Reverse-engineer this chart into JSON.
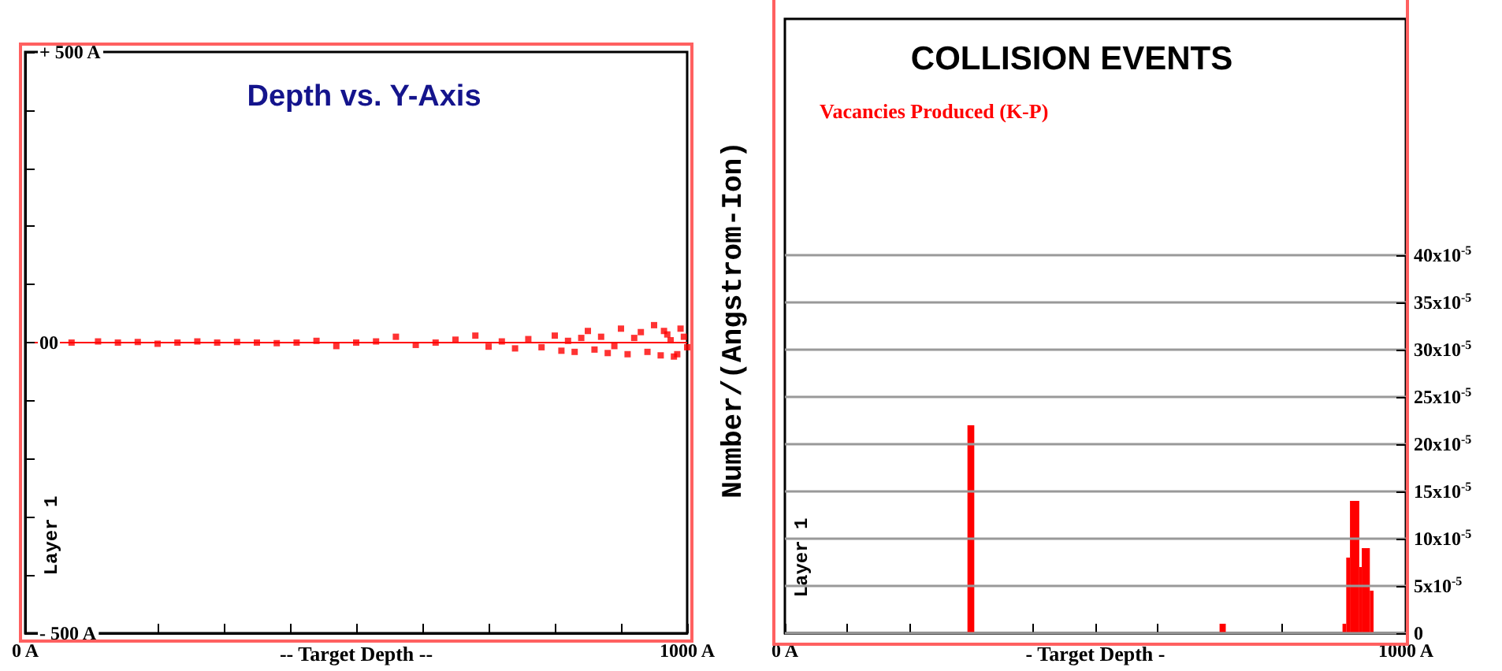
{
  "chart_data": [
    {
      "type": "scatter",
      "title": "Depth vs. Y-Axis",
      "xlabel": "-- Target Depth --",
      "annotations": [
        "Layer 1"
      ],
      "xlim": [
        0,
        1000
      ],
      "xticks": [
        {
          "value": 0,
          "label": "0 A"
        },
        {
          "value": 100,
          "label": null
        },
        {
          "value": 200,
          "label": null
        },
        {
          "value": 300,
          "label": null
        },
        {
          "value": 400,
          "label": null
        },
        {
          "value": 500,
          "label": null
        },
        {
          "value": 600,
          "label": null
        },
        {
          "value": 700,
          "label": null
        },
        {
          "value": 800,
          "label": null
        },
        {
          "value": 900,
          "label": null
        },
        {
          "value": 1000,
          "label": "1000 A"
        }
      ],
      "ylim": [
        -500,
        500
      ],
      "yticks": [
        {
          "value": -500,
          "label": "- 500 A"
        },
        {
          "value": -400,
          "label": null
        },
        {
          "value": -300,
          "label": null
        },
        {
          "value": -200,
          "label": null
        },
        {
          "value": -100,
          "label": null
        },
        {
          "value": 0,
          "label": "00"
        },
        {
          "value": 100,
          "label": null
        },
        {
          "value": 200,
          "label": null
        },
        {
          "value": 300,
          "label": null
        },
        {
          "value": 400,
          "label": null
        },
        {
          "value": 500,
          "label": "+ 500 A"
        }
      ],
      "grid": false,
      "marker": "square",
      "ref_lines": [
        {
          "axis": "y",
          "value": 0,
          "color": "#ff0000"
        }
      ],
      "series": [
        {
          "color": "#ff0000",
          "x": [
            70,
            110,
            140,
            170,
            200,
            230,
            260,
            290,
            320,
            350,
            380,
            410,
            440,
            470,
            500,
            530,
            560,
            590,
            620,
            650,
            680,
            700,
            720,
            740,
            760,
            780,
            800,
            810,
            820,
            830,
            840,
            850,
            860,
            870,
            880,
            890,
            900,
            910,
            920,
            930,
            940,
            950,
            960,
            970,
            980,
            990,
            1000,
            995,
            985,
            975,
            965
          ],
          "values": [
            0,
            2,
            0,
            1,
            -2,
            0,
            2,
            0,
            1,
            0,
            -1,
            0,
            3,
            -6,
            0,
            2,
            10,
            -4,
            0,
            5,
            12,
            -7,
            2,
            -10,
            6,
            -8,
            12,
            -14,
            3,
            -16,
            8,
            20,
            -12,
            10,
            -18,
            -6,
            24,
            -20,
            8,
            18,
            -16,
            30,
            -22,
            14,
            -24,
            24,
            -8,
            10,
            -20,
            4,
            20
          ]
        }
      ]
    },
    {
      "type": "histogram",
      "title": "COLLISION EVENTS",
      "xlabel": "- Target Depth -",
      "ylabel": "Number/(Angstrom-Ion)",
      "annotations": [
        "Layer 1"
      ],
      "xlim": [
        0,
        1000
      ],
      "xticks": [
        {
          "value": 0,
          "label": "0 A"
        },
        {
          "value": 100,
          "label": null
        },
        {
          "value": 200,
          "label": null
        },
        {
          "value": 300,
          "label": null
        },
        {
          "value": 400,
          "label": null
        },
        {
          "value": 500,
          "label": null
        },
        {
          "value": 600,
          "label": null
        },
        {
          "value": 700,
          "label": null
        },
        {
          "value": 800,
          "label": null
        },
        {
          "value": 900,
          "label": null
        },
        {
          "value": 1000,
          "label": "1000 A"
        }
      ],
      "ylim": [
        0,
        0.00065
      ],
      "yticks": [
        0,
        {
          "value": 5e-05,
          "label": "5x10$^{-5}$"
        },
        {
          "value": 0.0001,
          "label": "10x10$^{-5}$"
        },
        {
          "value": 0.00015,
          "label": "15x10$^{-5}$"
        },
        {
          "value": 0.0002,
          "label": "20x10$^{-5}$"
        },
        {
          "value": 0.00025,
          "label": "25x10$^{-5}$"
        },
        {
          "value": 0.0003,
          "label": "30x10$^{-5}$"
        },
        {
          "value": 0.00035,
          "label": "35x10$^{-5}$"
        },
        {
          "value": 0.0004,
          "label": "40x10$^{-5}$"
        }
      ],
      "grid": "y",
      "bins": [
        294,
        305,
        700,
        710,
        898,
        904,
        910,
        925,
        929,
        942,
        948
      ],
      "series": [
        {
          "name": "Vacancies Produced (K-P)",
          "color": "#ff0000",
          "values": [
            0.00022,
            0,
            1e-05,
            0,
            1e-05,
            8e-05,
            0.00014,
            7e-05,
            9e-05,
            4.5e-05
          ]
        }
      ]
    }
  ]
}
